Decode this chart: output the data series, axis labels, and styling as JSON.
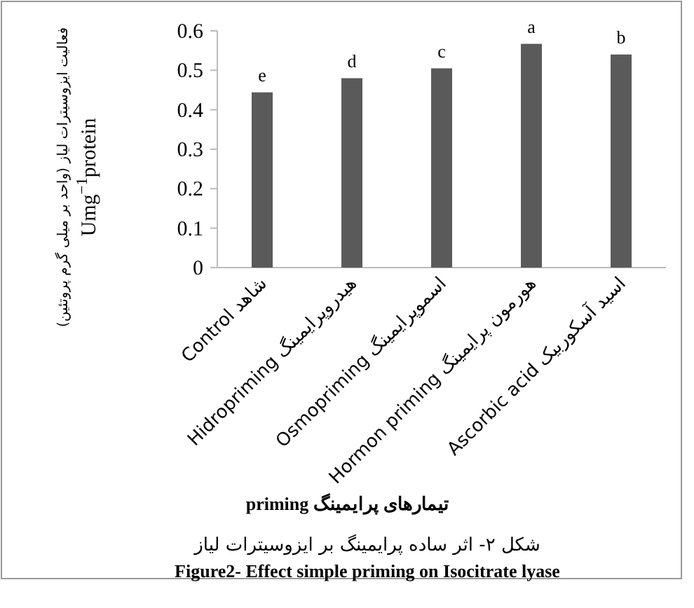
{
  "chart_data": {
    "type": "bar",
    "categories": [
      "Control شاهد",
      "Hidropriming هیدروپرایمینگ",
      "Osmopriming اسموپرایمینگ",
      "Hormon priming هورمون پرایمینگ",
      "Ascorbic acid اسید آسکوربیک"
    ],
    "values": [
      0.444,
      0.48,
      0.505,
      0.567,
      0.54
    ],
    "value_labels": [
      "e",
      "d",
      "c",
      "a",
      "b"
    ],
    "color": "#5a5a5a",
    "ylim": [
      0,
      0.6
    ],
    "yticks": [
      {
        "value": 0,
        "label": "0"
      },
      0.1,
      0.2,
      0.3,
      0.4,
      0.5,
      0.6
    ],
    "ylabel": "فعالیت ایزوسیترات لیاز (واحد بر میلی گرم پروتئین)\nUmg$^{−1}$protein",
    "xlabel": "priming تیمارهای پرایمینگ",
    "annotations": [
      "شکل ۲- اثر ساده پرایمینگ بر ایزوسیترات لیاز",
      "Figure2- Effect simple priming on Isocitrate lyase"
    ],
    "grid": false
  }
}
